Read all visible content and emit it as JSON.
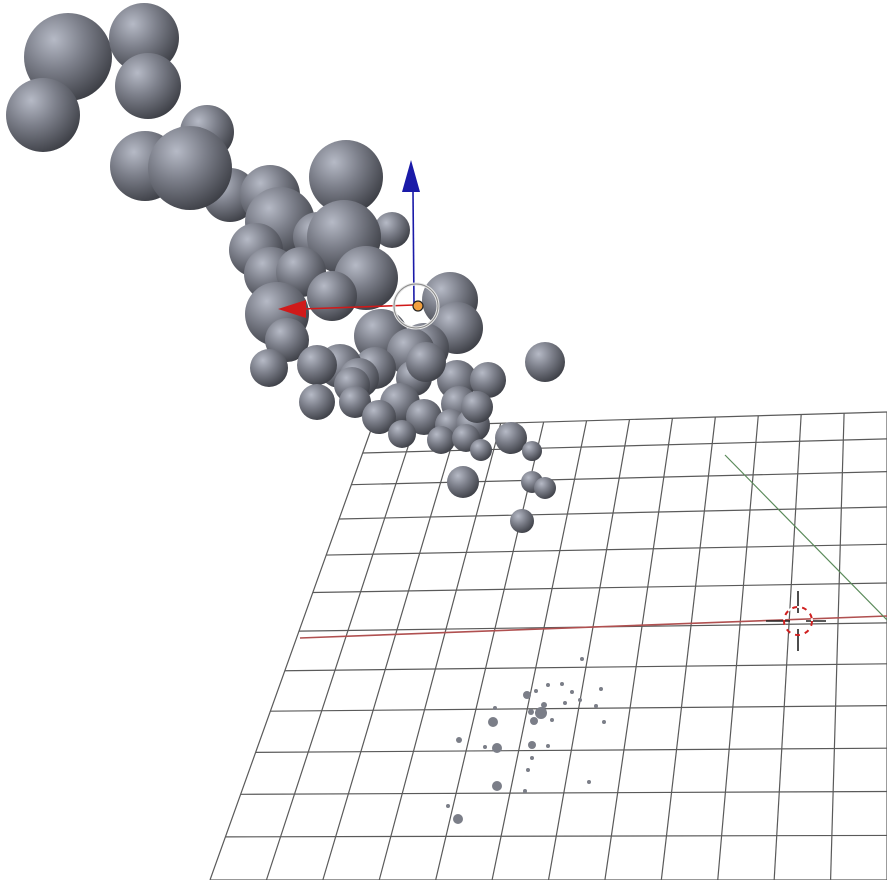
{
  "viewport": {
    "background": "#ffffff",
    "grid_color": "#5a5a5a",
    "x_axis_color": "#b05050",
    "y_axis_color": "#5a8a5a",
    "sphere_color": "#7b7e88"
  },
  "gizmo": {
    "z_arrow_color": "#1a1aa8",
    "x_arrow_color": "#d01a1a",
    "origin_color": "#f2a040"
  },
  "cursor_3d": {
    "ring_colors": [
      "#d02020",
      "#ffffff"
    ]
  },
  "icons": [
    "transform-gizmo-icon",
    "3d-cursor-icon"
  ]
}
